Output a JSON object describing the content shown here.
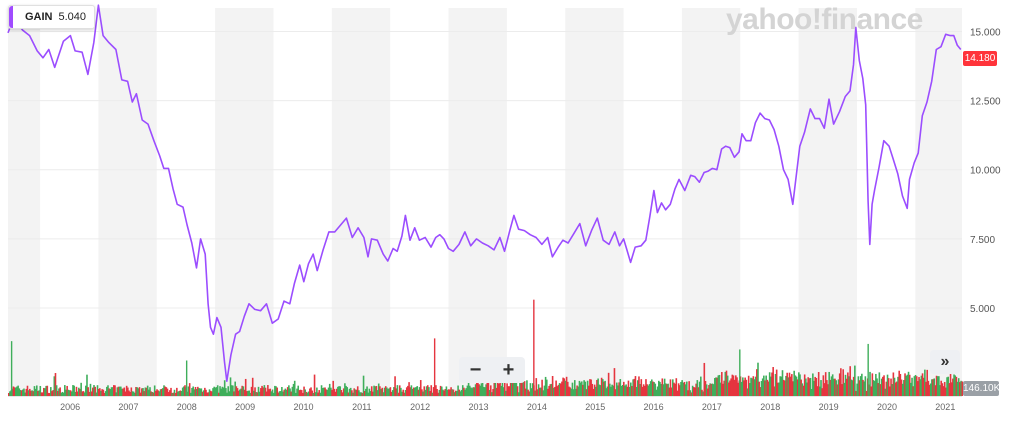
{
  "legend": {
    "symbol": "GAIN",
    "value": "5.040",
    "color": "#a04bff"
  },
  "brand": "yahoo!finance",
  "zoom": {
    "minus": "−",
    "plus": "+"
  },
  "expand_label": "»",
  "price_tag": "14.180",
  "volume_tag": "146.10K",
  "colors": {
    "line": "#9b4dff",
    "band": "#f3f3f3",
    "grid": "#ececec",
    "vol_up": "#3fae5b",
    "vol_down": "#e5353f",
    "price_tag": "#ff333a"
  },
  "chart_data": {
    "type": "line",
    "xlim": [
      2005.45,
      2021.8
    ],
    "ylim": [
      2.25,
      15.85
    ],
    "y_ticks": [
      5.0,
      7.5,
      10.0,
      12.5,
      15.0
    ],
    "y_tick_labels": [
      "5.000",
      "7.500",
      "10.000",
      "12.500",
      "15.000"
    ],
    "x_ticks": [
      2006,
      2007,
      2008,
      2009,
      2010,
      2011,
      2012,
      2013,
      2014,
      2015,
      2016,
      2017,
      2018,
      2019,
      2020,
      2021
    ],
    "x_tick_labels": [
      "2006",
      "2007",
      "2008",
      "2009",
      "2010",
      "2011",
      "2012",
      "2013",
      "2014",
      "2015",
      "2016",
      "2017",
      "2018",
      "2019",
      "2020",
      "2021"
    ],
    "grid": true,
    "series": [
      {
        "points": [
          [
            2005.45,
            15.1
          ],
          [
            2005.55,
            15.5
          ],
          [
            2005.7,
            14.9
          ],
          [
            2005.82,
            15.0
          ],
          [
            2005.95,
            14.3
          ],
          [
            2006.05,
            13.9
          ],
          [
            2006.15,
            14.5
          ],
          [
            2006.25,
            13.7
          ],
          [
            2006.4,
            14.5
          ],
          [
            2006.52,
            15.0
          ],
          [
            2006.6,
            14.3
          ],
          [
            2006.72,
            14.1
          ],
          [
            2006.82,
            13.6
          ],
          [
            2006.92,
            14.6
          ],
          [
            2007.0,
            15.8
          ],
          [
            2007.08,
            15.0
          ],
          [
            2007.18,
            14.6
          ],
          [
            2007.3,
            14.2
          ],
          [
            2007.4,
            13.4
          ],
          [
            2007.5,
            13.2
          ],
          [
            2007.58,
            12.3
          ],
          [
            2007.65,
            12.9
          ],
          [
            2007.75,
            11.8
          ],
          [
            2007.85,
            11.5
          ],
          [
            2007.95,
            11.2
          ],
          [
            2008.05,
            10.5
          ],
          [
            2008.12,
            9.9
          ],
          [
            2008.2,
            10.2
          ],
          [
            2008.28,
            9.3
          ],
          [
            2008.35,
            8.6
          ],
          [
            2008.45,
            8.8
          ],
          [
            2008.52,
            8.0
          ],
          [
            2008.6,
            7.2
          ],
          [
            2008.68,
            6.6
          ],
          [
            2008.75,
            7.5
          ],
          [
            2008.83,
            6.8
          ],
          [
            2008.88,
            5.3
          ],
          [
            2008.92,
            4.3
          ],
          [
            2008.97,
            3.9
          ],
          [
            2009.03,
            4.8
          ],
          [
            2009.1,
            4.3
          ],
          [
            2009.16,
            2.9
          ],
          [
            2009.2,
            2.5
          ],
          [
            2009.27,
            3.3
          ],
          [
            2009.35,
            3.9
          ],
          [
            2009.42,
            4.3
          ],
          [
            2009.5,
            4.7
          ],
          [
            2009.58,
            5.0
          ],
          [
            2009.68,
            5.1
          ],
          [
            2009.78,
            4.9
          ],
          [
            2009.88,
            5.0
          ],
          [
            2009.98,
            4.6
          ],
          [
            2010.08,
            4.6
          ],
          [
            2010.18,
            5.1
          ],
          [
            2010.28,
            5.3
          ],
          [
            2010.36,
            5.9
          ],
          [
            2010.45,
            6.4
          ],
          [
            2010.52,
            6.1
          ],
          [
            2010.6,
            6.6
          ],
          [
            2010.68,
            6.8
          ],
          [
            2010.75,
            6.5
          ],
          [
            2010.85,
            7.1
          ],
          [
            2010.95,
            7.6
          ],
          [
            2011.05,
            7.9
          ],
          [
            2011.15,
            8.0
          ],
          [
            2011.25,
            8.1
          ],
          [
            2011.35,
            7.7
          ],
          [
            2011.45,
            7.9
          ],
          [
            2011.55,
            7.4
          ],
          [
            2011.62,
            7.0
          ],
          [
            2011.68,
            7.5
          ],
          [
            2011.78,
            7.3
          ],
          [
            2011.88,
            7.1
          ],
          [
            2011.96,
            6.7
          ],
          [
            2012.05,
            7.0
          ],
          [
            2012.12,
            7.2
          ],
          [
            2012.2,
            7.6
          ],
          [
            2012.26,
            8.2
          ],
          [
            2012.34,
            7.6
          ],
          [
            2012.42,
            7.9
          ],
          [
            2012.5,
            7.3
          ],
          [
            2012.6,
            7.7
          ],
          [
            2012.7,
            7.2
          ],
          [
            2012.78,
            7.4
          ],
          [
            2012.85,
            7.8
          ],
          [
            2012.92,
            7.5
          ],
          [
            2013.0,
            7.0
          ],
          [
            2013.08,
            7.2
          ],
          [
            2013.18,
            7.3
          ],
          [
            2013.28,
            7.6
          ],
          [
            2013.38,
            7.4
          ],
          [
            2013.48,
            7.5
          ],
          [
            2013.58,
            7.2
          ],
          [
            2013.68,
            7.4
          ],
          [
            2013.78,
            7.1
          ],
          [
            2013.88,
            7.4
          ],
          [
            2013.96,
            7.2
          ],
          [
            2014.05,
            7.8
          ],
          [
            2014.12,
            8.2
          ],
          [
            2014.2,
            8.0
          ],
          [
            2014.3,
            7.8
          ],
          [
            2014.4,
            7.5
          ],
          [
            2014.5,
            7.7
          ],
          [
            2014.6,
            7.3
          ],
          [
            2014.7,
            7.4
          ],
          [
            2014.78,
            7.0
          ],
          [
            2014.88,
            7.2
          ],
          [
            2014.96,
            7.3
          ],
          [
            2015.05,
            7.5
          ],
          [
            2015.15,
            7.7
          ],
          [
            2015.25,
            7.9
          ],
          [
            2015.35,
            7.4
          ],
          [
            2015.45,
            7.8
          ],
          [
            2015.55,
            8.1
          ],
          [
            2015.65,
            7.6
          ],
          [
            2015.75,
            7.3
          ],
          [
            2015.85,
            7.6
          ],
          [
            2015.93,
            7.4
          ],
          [
            2016.0,
            7.5
          ],
          [
            2016.05,
            7.0
          ],
          [
            2016.12,
            6.8
          ],
          [
            2016.2,
            7.2
          ],
          [
            2016.3,
            7.1
          ],
          [
            2016.38,
            7.6
          ],
          [
            2016.45,
            8.3
          ],
          [
            2016.52,
            9.1
          ],
          [
            2016.58,
            8.6
          ],
          [
            2016.65,
            8.8
          ],
          [
            2016.72,
            8.4
          ],
          [
            2016.8,
            8.9
          ],
          [
            2016.88,
            9.3
          ],
          [
            2016.95,
            9.5
          ],
          [
            2017.05,
            9.4
          ],
          [
            2017.15,
            9.8
          ],
          [
            2017.22,
            9.6
          ],
          [
            2017.3,
            9.7
          ],
          [
            2017.38,
            9.9
          ],
          [
            2017.45,
            9.8
          ],
          [
            2017.52,
            10.2
          ],
          [
            2017.6,
            10.0
          ],
          [
            2017.68,
            10.6
          ],
          [
            2017.75,
            11.0
          ],
          [
            2017.82,
            10.8
          ],
          [
            2017.9,
            10.3
          ],
          [
            2017.98,
            10.8
          ],
          [
            2018.03,
            11.3
          ],
          [
            2018.1,
            10.9
          ],
          [
            2018.18,
            11.2
          ],
          [
            2018.26,
            11.7
          ],
          [
            2018.34,
            11.9
          ],
          [
            2018.42,
            12.0
          ],
          [
            2018.5,
            11.8
          ],
          [
            2018.58,
            11.3
          ],
          [
            2018.66,
            11.0
          ],
          [
            2018.74,
            10.0
          ],
          [
            2018.82,
            9.5
          ],
          [
            2018.9,
            8.9
          ],
          [
            2018.96,
            9.8
          ],
          [
            2019.02,
            10.7
          ],
          [
            2019.1,
            11.5
          ],
          [
            2019.2,
            12.2
          ],
          [
            2019.28,
            11.7
          ],
          [
            2019.36,
            12.0
          ],
          [
            2019.44,
            11.5
          ],
          [
            2019.52,
            12.4
          ],
          [
            2019.6,
            11.8
          ],
          [
            2019.7,
            12.1
          ],
          [
            2019.8,
            12.5
          ],
          [
            2019.88,
            13.0
          ],
          [
            2019.94,
            13.8
          ],
          [
            2019.98,
            15.0
          ],
          [
            2020.04,
            14.1
          ],
          [
            2020.1,
            13.3
          ],
          [
            2020.15,
            12.2
          ],
          [
            2020.19,
            9.0
          ],
          [
            2020.22,
            7.3
          ],
          [
            2020.26,
            8.6
          ],
          [
            2020.3,
            9.4
          ],
          [
            2020.38,
            10.1
          ],
          [
            2020.46,
            10.9
          ],
          [
            2020.55,
            11.0
          ],
          [
            2020.62,
            10.4
          ],
          [
            2020.7,
            9.7
          ],
          [
            2020.78,
            9.2
          ],
          [
            2020.86,
            8.6
          ],
          [
            2020.9,
            9.5
          ],
          [
            2020.98,
            10.4
          ],
          [
            2021.05,
            10.6
          ],
          [
            2021.12,
            11.8
          ],
          [
            2021.2,
            12.6
          ],
          [
            2021.28,
            13.2
          ],
          [
            2021.36,
            14.2
          ],
          [
            2021.44,
            14.6
          ],
          [
            2021.52,
            14.9
          ],
          [
            2021.6,
            14.7
          ],
          [
            2021.66,
            15.0
          ],
          [
            2021.72,
            14.5
          ],
          [
            2021.78,
            14.2
          ]
        ]
      }
    ],
    "volume": {
      "volume_spikes": [
        [
          2005.5,
          3.8
        ],
        [
          2008.5,
          3.1
        ],
        [
          2012.75,
          3.9
        ],
        [
          2014.45,
          5.3
        ],
        [
          2017.98,
          3.5
        ],
        [
          2020.18,
          3.7
        ]
      ]
    }
  }
}
